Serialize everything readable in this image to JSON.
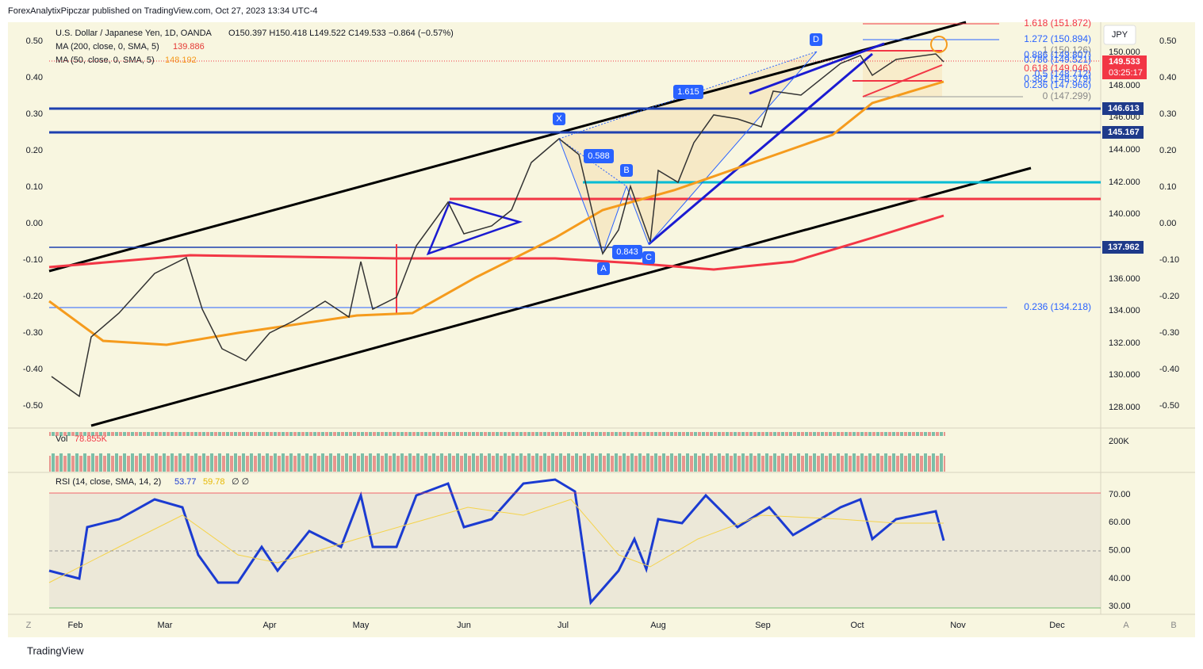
{
  "header": {
    "publisher": "ForexAnalytixPipczar published on TradingView.com, Oct 27, 2023 13:34 UTC-4"
  },
  "legend": {
    "symbol": "U.S. Dollar / Japanese Yen, 1D, OANDA",
    "ohlc": "O150.397  H150.418  L149.522  C149.533  −0.864 (−0.57%)",
    "ma200": "MA (200, close, 0, SMA, 5)",
    "ma200_value": "139.886",
    "ma50": "MA (50, close, 0, SMA, 5)",
    "ma50_value": "148.192"
  },
  "currency": "JPY",
  "left_axis": [
    "0.50",
    "0.40",
    "0.30",
    "0.20",
    "0.10",
    "0.00",
    "-0.10",
    "-0.20",
    "-0.30",
    "-0.40",
    "-0.50"
  ],
  "right_axis": [
    "150.000",
    "148.000",
    "146.000",
    "144.000",
    "142.000",
    "140.000",
    "136.000",
    "134.000",
    "132.000",
    "130.000",
    "128.000"
  ],
  "far_axis": [
    "0.50",
    "0.40",
    "0.30",
    "0.20",
    "0.10",
    "0.00",
    "-0.10",
    "-0.20",
    "-0.30",
    "-0.40",
    "-0.50"
  ],
  "fib_labels": [
    "1.618 (151.872)",
    "1.272 (150.894)",
    "1 (150.126)",
    "0.886 (149.807)",
    "0.786 (149.521)",
    "0.618 (149.046)",
    "0.5 (148.712)",
    "0.382 (148.379)",
    "0.236 (147.966)",
    "0 (147.299)",
    "0.236 (134.218)"
  ],
  "price_tags": {
    "last": "149.533",
    "countdown": "03:25:17",
    "levels": [
      "146.613",
      "145.167",
      "137.962"
    ]
  },
  "pattern_labels": [
    "X",
    "A",
    "B",
    "C",
    "D"
  ],
  "ratio_labels": [
    "1.615",
    "0.588",
    "0.843"
  ],
  "months": [
    "Feb",
    "Mar",
    "Apr",
    "May",
    "Jun",
    "Jul",
    "Aug",
    "Sep",
    "Oct",
    "Nov",
    "Dec"
  ],
  "volume": {
    "label": "Vol",
    "value": "78.855K",
    "axis": "200K"
  },
  "rsi": {
    "label": "RSI (14, close, SMA, 14, 2)",
    "value": "53.77",
    "sma": "59.78",
    "extra": "∅  ∅",
    "ticks": [
      "70.00",
      "60.00",
      "50.00",
      "40.00",
      "30.00"
    ]
  },
  "footer": {
    "brand": "TradingView",
    "left_button": "Z",
    "right_buttons": [
      "A",
      "B"
    ]
  }
}
